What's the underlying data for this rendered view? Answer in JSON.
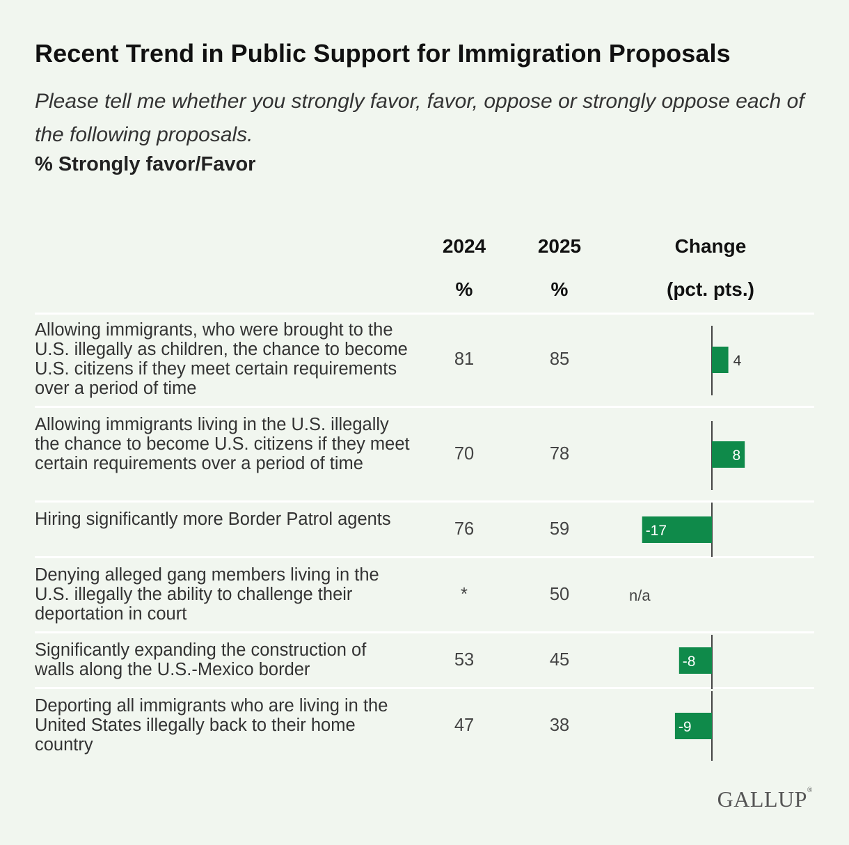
{
  "title": "Recent Trend in Public Support for Immigration Proposals",
  "subtitle": "Please tell me whether you strongly favor, favor, oppose or strongly oppose each of the following proposals.",
  "measure": "% Strongly favor/Favor",
  "columns": {
    "y2024": "2024",
    "y2024_unit": "%",
    "y2025": "2025",
    "y2025_unit": "%",
    "change": "Change",
    "change_unit": "(pct. pts.)"
  },
  "source_logo": "GALLUP",
  "colors": {
    "bar": "#0f8a4a",
    "background": "#f1f6ef",
    "axis": "#444444"
  },
  "chart_data": {
    "type": "table",
    "title": "Recent Trend in Public Support for Immigration Proposals",
    "rows": [
      {
        "label": "Allowing immigrants, who were brought to the U.S. illegally as children, the chance to become U.S. citizens if they meet certain requirements over a period of time",
        "v2024": "81",
        "v2025": "85",
        "change": 4,
        "change_label": "4"
      },
      {
        "label": "Allowing immigrants living in the U.S. illegally the chance to become U.S. citizens if they meet certain requirements over a period of time",
        "v2024": "70",
        "v2025": "78",
        "change": 8,
        "change_label": "8"
      },
      {
        "label": "Hiring significantly more Border Patrol agents",
        "v2024": "76",
        "v2025": "59",
        "change": -17,
        "change_label": "-17"
      },
      {
        "label": "Denying alleged gang members living in the U.S. illegally the ability to challenge their deportation in court",
        "v2024": "*",
        "v2025": "50",
        "change": null,
        "change_label": "n/a"
      },
      {
        "label": "Significantly expanding the construction of walls along the U.S.-Mexico border",
        "v2024": "53",
        "v2025": "45",
        "change": -8,
        "change_label": "-8"
      },
      {
        "label": "Deporting all immigrants who are living in the United States illegally back to their home country",
        "v2024": "47",
        "v2025": "38",
        "change": -9,
        "change_label": "-9"
      }
    ]
  }
}
